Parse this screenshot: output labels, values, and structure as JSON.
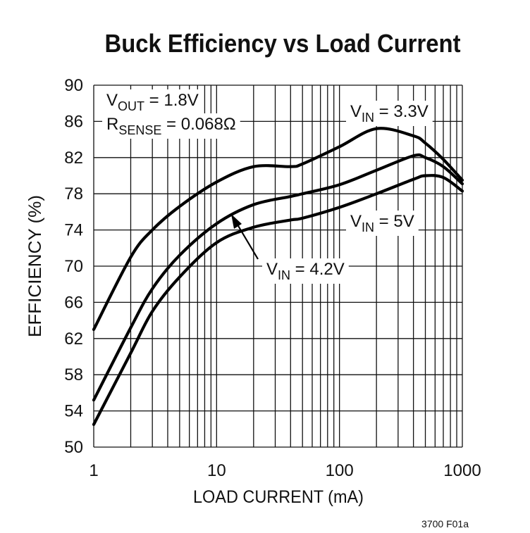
{
  "chart_data": {
    "type": "line",
    "title": "Buck Efficiency vs Load Current",
    "xlabel": "LOAD CURRENT (mA)",
    "ylabel": "EFFICIENCY (%)",
    "footnote": "3700 F01a",
    "log_x": true,
    "grid": true,
    "color": "#000000",
    "xlim": [
      1,
      1000
    ],
    "xticks": [
      1,
      10,
      100,
      1000
    ],
    "ylim": [
      50,
      90
    ],
    "yticks": [
      50,
      54,
      58,
      62,
      66,
      70,
      74,
      78,
      82,
      86,
      90
    ],
    "annotations": [
      [
        {
          "text": "V"
        },
        {
          "text": "OUT",
          "sub": true
        },
        {
          "text": " = 1.8V"
        }
      ],
      [
        {
          "text": "R"
        },
        {
          "text": "SENSE",
          "sub": true
        },
        {
          "text": " = 0.068Ω"
        }
      ]
    ],
    "x": [
      1,
      2,
      3,
      5,
      10,
      20,
      40,
      50,
      100,
      200,
      400,
      500,
      700,
      1000
    ],
    "series": [
      {
        "label": [
          {
            "text": "V"
          },
          {
            "text": "IN",
            "sub": true
          },
          {
            "text": " = 3.3V"
          }
        ],
        "values": [
          63.0,
          71.0,
          74.0,
          76.6,
          79.3,
          81.0,
          81.0,
          81.3,
          83.2,
          85.2,
          84.4,
          83.6,
          81.8,
          79.5
        ]
      },
      {
        "label": [
          {
            "text": "V"
          },
          {
            "text": "IN",
            "sub": true
          },
          {
            "text": " = 4.2V"
          }
        ],
        "values": [
          55.2,
          63.2,
          67.5,
          71.2,
          74.7,
          76.8,
          77.7,
          78.0,
          79.0,
          80.6,
          82.2,
          82.0,
          81.0,
          79.1
        ]
      },
      {
        "label": [
          {
            "text": "V"
          },
          {
            "text": "IN",
            "sub": true
          },
          {
            "text": " = 5V"
          }
        ],
        "values": [
          52.5,
          60.4,
          65.0,
          68.8,
          72.6,
          74.3,
          75.1,
          75.3,
          76.5,
          78.0,
          79.6,
          80.0,
          79.8,
          78.3
        ]
      }
    ]
  }
}
